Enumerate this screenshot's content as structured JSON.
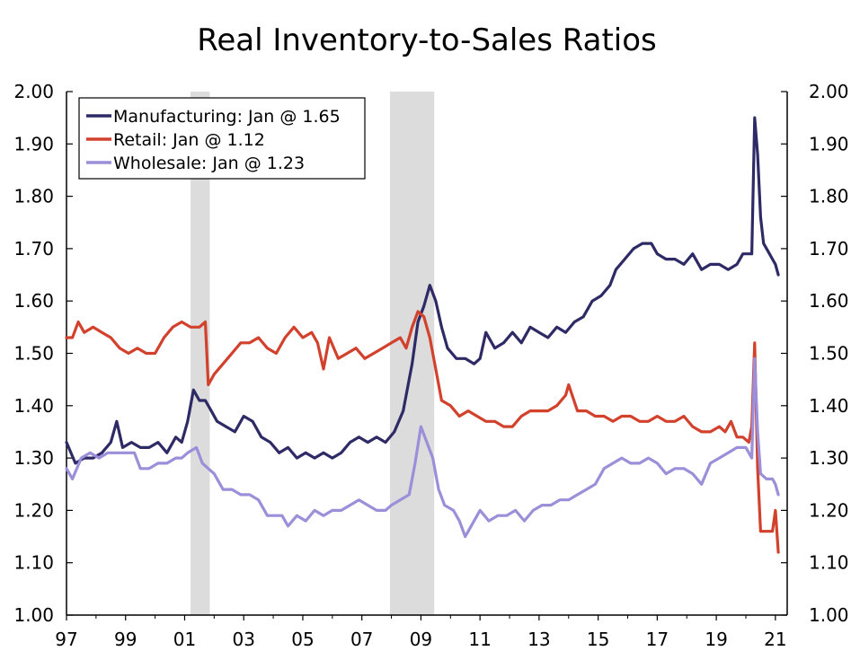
{
  "chart_data": {
    "type": "line",
    "title": "Real Inventory-to-Sales Ratios",
    "xlabel": "",
    "ylabel": "",
    "xlim": [
      1997,
      2021.4
    ],
    "ylim": [
      1.0,
      2.0
    ],
    "y_ticks": [
      "1.00",
      "1.10",
      "1.20",
      "1.30",
      "1.40",
      "1.50",
      "1.60",
      "1.70",
      "1.80",
      "1.90",
      "2.00"
    ],
    "y_tick_values": [
      1.0,
      1.1,
      1.2,
      1.3,
      1.4,
      1.5,
      1.6,
      1.7,
      1.8,
      1.9,
      2.0
    ],
    "x_ticks": [
      "97",
      "99",
      "01",
      "03",
      "05",
      "07",
      "09",
      "11",
      "13",
      "15",
      "17",
      "19",
      "21"
    ],
    "x_tick_values": [
      1997,
      1999,
      2001,
      2003,
      2005,
      2007,
      2009,
      2011,
      2013,
      2015,
      2017,
      2019,
      2021
    ],
    "recessions": [
      [
        2001.2,
        2001.85
      ],
      [
        2007.95,
        2009.45
      ]
    ],
    "legend_position": "top-left",
    "series": [
      {
        "name": "Manufacturing: Jan @ 1.65",
        "color": "#2e2a66",
        "points": [
          [
            1997.0,
            1.33
          ],
          [
            1997.3,
            1.29
          ],
          [
            1997.6,
            1.3
          ],
          [
            1997.9,
            1.3
          ],
          [
            1998.2,
            1.31
          ],
          [
            1998.5,
            1.33
          ],
          [
            1998.7,
            1.37
          ],
          [
            1998.9,
            1.32
          ],
          [
            1999.2,
            1.33
          ],
          [
            1999.5,
            1.32
          ],
          [
            1999.8,
            1.32
          ],
          [
            2000.1,
            1.33
          ],
          [
            2000.4,
            1.31
          ],
          [
            2000.7,
            1.34
          ],
          [
            2000.9,
            1.33
          ],
          [
            2001.1,
            1.37
          ],
          [
            2001.3,
            1.43
          ],
          [
            2001.5,
            1.41
          ],
          [
            2001.7,
            1.41
          ],
          [
            2001.9,
            1.39
          ],
          [
            2002.1,
            1.37
          ],
          [
            2002.4,
            1.36
          ],
          [
            2002.7,
            1.35
          ],
          [
            2003.0,
            1.38
          ],
          [
            2003.3,
            1.37
          ],
          [
            2003.6,
            1.34
          ],
          [
            2003.9,
            1.33
          ],
          [
            2004.2,
            1.31
          ],
          [
            2004.5,
            1.32
          ],
          [
            2004.8,
            1.3
          ],
          [
            2005.1,
            1.31
          ],
          [
            2005.4,
            1.3
          ],
          [
            2005.7,
            1.31
          ],
          [
            2006.0,
            1.3
          ],
          [
            2006.3,
            1.31
          ],
          [
            2006.6,
            1.33
          ],
          [
            2006.9,
            1.34
          ],
          [
            2007.2,
            1.33
          ],
          [
            2007.5,
            1.34
          ],
          [
            2007.8,
            1.33
          ],
          [
            2008.1,
            1.35
          ],
          [
            2008.4,
            1.39
          ],
          [
            2008.7,
            1.48
          ],
          [
            2008.9,
            1.56
          ],
          [
            2009.1,
            1.59
          ],
          [
            2009.3,
            1.63
          ],
          [
            2009.5,
            1.6
          ],
          [
            2009.7,
            1.55
          ],
          [
            2009.9,
            1.51
          ],
          [
            2010.2,
            1.49
          ],
          [
            2010.5,
            1.49
          ],
          [
            2010.8,
            1.48
          ],
          [
            2011.0,
            1.49
          ],
          [
            2011.2,
            1.54
          ],
          [
            2011.5,
            1.51
          ],
          [
            2011.8,
            1.52
          ],
          [
            2012.1,
            1.54
          ],
          [
            2012.4,
            1.52
          ],
          [
            2012.7,
            1.55
          ],
          [
            2013.0,
            1.54
          ],
          [
            2013.3,
            1.53
          ],
          [
            2013.6,
            1.55
          ],
          [
            2013.9,
            1.54
          ],
          [
            2014.2,
            1.56
          ],
          [
            2014.5,
            1.57
          ],
          [
            2014.8,
            1.6
          ],
          [
            2015.1,
            1.61
          ],
          [
            2015.4,
            1.63
          ],
          [
            2015.6,
            1.66
          ],
          [
            2015.9,
            1.68
          ],
          [
            2016.2,
            1.7
          ],
          [
            2016.5,
            1.71
          ],
          [
            2016.8,
            1.71
          ],
          [
            2017.0,
            1.69
          ],
          [
            2017.3,
            1.68
          ],
          [
            2017.6,
            1.68
          ],
          [
            2017.9,
            1.67
          ],
          [
            2018.2,
            1.69
          ],
          [
            2018.5,
            1.66
          ],
          [
            2018.8,
            1.67
          ],
          [
            2019.1,
            1.67
          ],
          [
            2019.4,
            1.66
          ],
          [
            2019.7,
            1.67
          ],
          [
            2019.9,
            1.69
          ],
          [
            2020.1,
            1.69
          ],
          [
            2020.2,
            1.69
          ],
          [
            2020.3,
            1.95
          ],
          [
            2020.4,
            1.88
          ],
          [
            2020.5,
            1.76
          ],
          [
            2020.6,
            1.71
          ],
          [
            2020.8,
            1.69
          ],
          [
            2020.9,
            1.68
          ],
          [
            2021.0,
            1.67
          ],
          [
            2021.1,
            1.65
          ]
        ]
      },
      {
        "name": "Retail: Jan @ 1.12",
        "color": "#d2412c",
        "points": [
          [
            1997.0,
            1.53
          ],
          [
            1997.2,
            1.53
          ],
          [
            1997.4,
            1.56
          ],
          [
            1997.6,
            1.54
          ],
          [
            1997.9,
            1.55
          ],
          [
            1998.2,
            1.54
          ],
          [
            1998.5,
            1.53
          ],
          [
            1998.8,
            1.51
          ],
          [
            1999.1,
            1.5
          ],
          [
            1999.4,
            1.51
          ],
          [
            1999.7,
            1.5
          ],
          [
            2000.0,
            1.5
          ],
          [
            2000.3,
            1.53
          ],
          [
            2000.6,
            1.55
          ],
          [
            2000.9,
            1.56
          ],
          [
            2001.2,
            1.55
          ],
          [
            2001.5,
            1.55
          ],
          [
            2001.7,
            1.56
          ],
          [
            2001.8,
            1.44
          ],
          [
            2002.0,
            1.46
          ],
          [
            2002.3,
            1.48
          ],
          [
            2002.6,
            1.5
          ],
          [
            2002.9,
            1.52
          ],
          [
            2003.2,
            1.52
          ],
          [
            2003.5,
            1.53
          ],
          [
            2003.8,
            1.51
          ],
          [
            2004.1,
            1.5
          ],
          [
            2004.4,
            1.53
          ],
          [
            2004.7,
            1.55
          ],
          [
            2005.0,
            1.53
          ],
          [
            2005.3,
            1.54
          ],
          [
            2005.5,
            1.52
          ],
          [
            2005.7,
            1.47
          ],
          [
            2005.9,
            1.53
          ],
          [
            2006.2,
            1.49
          ],
          [
            2006.5,
            1.5
          ],
          [
            2006.8,
            1.51
          ],
          [
            2007.1,
            1.49
          ],
          [
            2007.4,
            1.5
          ],
          [
            2007.7,
            1.51
          ],
          [
            2008.0,
            1.52
          ],
          [
            2008.3,
            1.53
          ],
          [
            2008.5,
            1.51
          ],
          [
            2008.7,
            1.55
          ],
          [
            2008.9,
            1.58
          ],
          [
            2009.1,
            1.57
          ],
          [
            2009.3,
            1.53
          ],
          [
            2009.5,
            1.47
          ],
          [
            2009.7,
            1.41
          ],
          [
            2010.0,
            1.4
          ],
          [
            2010.3,
            1.38
          ],
          [
            2010.6,
            1.39
          ],
          [
            2010.9,
            1.38
          ],
          [
            2011.2,
            1.37
          ],
          [
            2011.5,
            1.37
          ],
          [
            2011.8,
            1.36
          ],
          [
            2012.1,
            1.36
          ],
          [
            2012.4,
            1.38
          ],
          [
            2012.7,
            1.39
          ],
          [
            2013.0,
            1.39
          ],
          [
            2013.3,
            1.39
          ],
          [
            2013.6,
            1.4
          ],
          [
            2013.9,
            1.42
          ],
          [
            2014.0,
            1.44
          ],
          [
            2014.3,
            1.39
          ],
          [
            2014.6,
            1.39
          ],
          [
            2014.9,
            1.38
          ],
          [
            2015.2,
            1.38
          ],
          [
            2015.5,
            1.37
          ],
          [
            2015.8,
            1.38
          ],
          [
            2016.1,
            1.38
          ],
          [
            2016.4,
            1.37
          ],
          [
            2016.7,
            1.37
          ],
          [
            2017.0,
            1.38
          ],
          [
            2017.3,
            1.37
          ],
          [
            2017.6,
            1.37
          ],
          [
            2017.9,
            1.38
          ],
          [
            2018.2,
            1.36
          ],
          [
            2018.5,
            1.35
          ],
          [
            2018.8,
            1.35
          ],
          [
            2019.1,
            1.36
          ],
          [
            2019.3,
            1.35
          ],
          [
            2019.5,
            1.37
          ],
          [
            2019.7,
            1.34
          ],
          [
            2019.9,
            1.34
          ],
          [
            2020.1,
            1.33
          ],
          [
            2020.2,
            1.36
          ],
          [
            2020.3,
            1.52
          ],
          [
            2020.4,
            1.28
          ],
          [
            2020.5,
            1.16
          ],
          [
            2020.7,
            1.16
          ],
          [
            2020.9,
            1.16
          ],
          [
            2021.0,
            1.2
          ],
          [
            2021.1,
            1.12
          ]
        ]
      },
      {
        "name": "Wholesale: Jan @ 1.23",
        "color": "#9b8fd9",
        "points": [
          [
            1997.0,
            1.28
          ],
          [
            1997.2,
            1.26
          ],
          [
            1997.5,
            1.3
          ],
          [
            1997.8,
            1.31
          ],
          [
            1998.1,
            1.3
          ],
          [
            1998.4,
            1.31
          ],
          [
            1998.7,
            1.31
          ],
          [
            1999.0,
            1.31
          ],
          [
            1999.3,
            1.31
          ],
          [
            1999.5,
            1.28
          ],
          [
            1999.8,
            1.28
          ],
          [
            2000.1,
            1.29
          ],
          [
            2000.4,
            1.29
          ],
          [
            2000.7,
            1.3
          ],
          [
            2000.9,
            1.3
          ],
          [
            2001.1,
            1.31
          ],
          [
            2001.4,
            1.32
          ],
          [
            2001.6,
            1.29
          ],
          [
            2001.8,
            1.28
          ],
          [
            2002.0,
            1.27
          ],
          [
            2002.3,
            1.24
          ],
          [
            2002.6,
            1.24
          ],
          [
            2002.9,
            1.23
          ],
          [
            2003.2,
            1.23
          ],
          [
            2003.5,
            1.22
          ],
          [
            2003.8,
            1.19
          ],
          [
            2004.1,
            1.19
          ],
          [
            2004.3,
            1.19
          ],
          [
            2004.5,
            1.17
          ],
          [
            2004.8,
            1.19
          ],
          [
            2005.1,
            1.18
          ],
          [
            2005.4,
            1.2
          ],
          [
            2005.7,
            1.19
          ],
          [
            2006.0,
            1.2
          ],
          [
            2006.3,
            1.2
          ],
          [
            2006.6,
            1.21
          ],
          [
            2006.9,
            1.22
          ],
          [
            2007.2,
            1.21
          ],
          [
            2007.5,
            1.2
          ],
          [
            2007.8,
            1.2
          ],
          [
            2008.0,
            1.21
          ],
          [
            2008.3,
            1.22
          ],
          [
            2008.6,
            1.23
          ],
          [
            2008.8,
            1.29
          ],
          [
            2009.0,
            1.36
          ],
          [
            2009.2,
            1.33
          ],
          [
            2009.4,
            1.3
          ],
          [
            2009.6,
            1.24
          ],
          [
            2009.8,
            1.21
          ],
          [
            2010.1,
            1.2
          ],
          [
            2010.3,
            1.18
          ],
          [
            2010.5,
            1.15
          ],
          [
            2010.8,
            1.18
          ],
          [
            2011.0,
            1.2
          ],
          [
            2011.3,
            1.18
          ],
          [
            2011.6,
            1.19
          ],
          [
            2011.9,
            1.19
          ],
          [
            2012.2,
            1.2
          ],
          [
            2012.5,
            1.18
          ],
          [
            2012.8,
            1.2
          ],
          [
            2013.1,
            1.21
          ],
          [
            2013.4,
            1.21
          ],
          [
            2013.7,
            1.22
          ],
          [
            2014.0,
            1.22
          ],
          [
            2014.3,
            1.23
          ],
          [
            2014.6,
            1.24
          ],
          [
            2014.9,
            1.25
          ],
          [
            2015.2,
            1.28
          ],
          [
            2015.5,
            1.29
          ],
          [
            2015.8,
            1.3
          ],
          [
            2016.1,
            1.29
          ],
          [
            2016.4,
            1.29
          ],
          [
            2016.7,
            1.3
          ],
          [
            2017.0,
            1.29
          ],
          [
            2017.3,
            1.27
          ],
          [
            2017.6,
            1.28
          ],
          [
            2017.9,
            1.28
          ],
          [
            2018.2,
            1.27
          ],
          [
            2018.5,
            1.25
          ],
          [
            2018.8,
            1.29
          ],
          [
            2019.1,
            1.3
          ],
          [
            2019.4,
            1.31
          ],
          [
            2019.7,
            1.32
          ],
          [
            2020.0,
            1.32
          ],
          [
            2020.2,
            1.3
          ],
          [
            2020.3,
            1.49
          ],
          [
            2020.4,
            1.35
          ],
          [
            2020.5,
            1.27
          ],
          [
            2020.7,
            1.26
          ],
          [
            2020.9,
            1.26
          ],
          [
            2021.0,
            1.25
          ],
          [
            2021.1,
            1.23
          ]
        ]
      }
    ]
  }
}
